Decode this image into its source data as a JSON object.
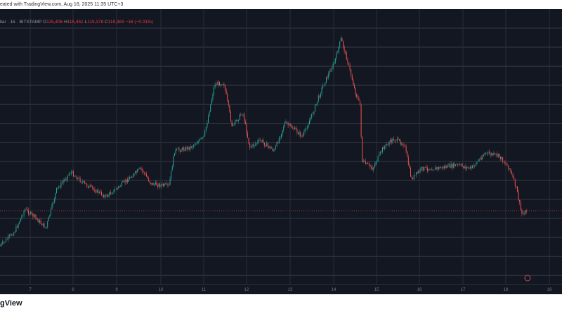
{
  "topbar": {
    "text": "eated with TradingView.com, Aug 18, 2025 11:35 UTC+3"
  },
  "legend": {
    "symbol": "llar · 15 · BITSTAMP",
    "o_label": "O",
    "o": "115,406",
    "h_label": "H",
    "h": "115,451",
    "l_label": "L",
    "l": "115,378",
    "c_label": "C",
    "c": "115,383",
    "change": "−16 (−0.01%)"
  },
  "axis": {
    "labels": [
      "7",
      "8",
      "9",
      "10",
      "11",
      "12",
      "13",
      "14",
      "15",
      "16",
      "17",
      "18",
      "19"
    ]
  },
  "logo": {
    "text": "gView"
  },
  "colors": {
    "background": "#131722",
    "up": "#26a69a",
    "down": "#ef5350",
    "grid": "#363a45",
    "price_line": "#f23645"
  }
}
